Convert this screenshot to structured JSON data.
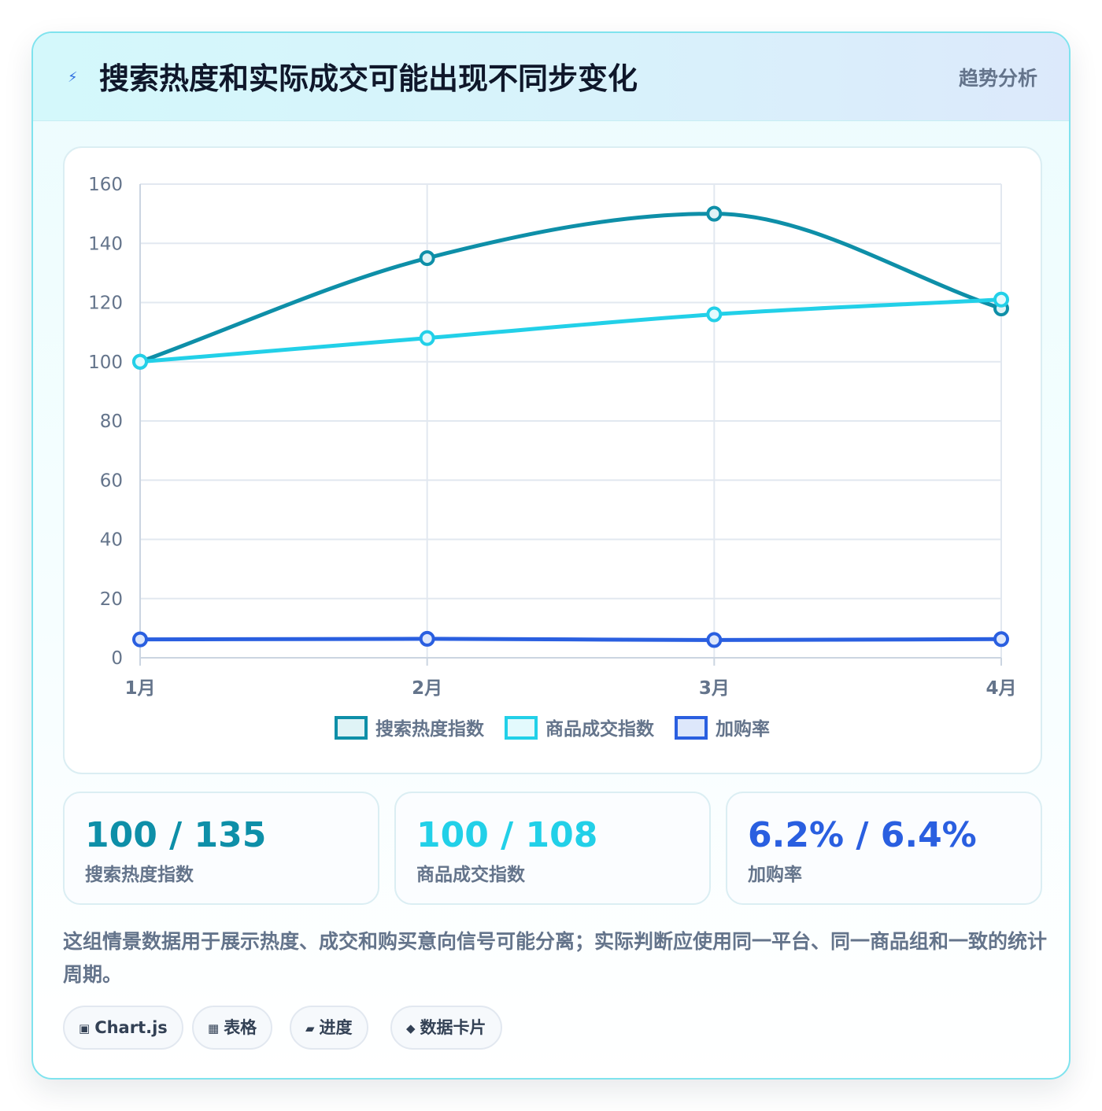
{
  "header": {
    "title": "搜索热度和实际成交可能出现不同步变化",
    "tag": "趋势分析",
    "icon": "lightning-icon"
  },
  "chart_data": {
    "type": "line",
    "categories": [
      "1月",
      "2月",
      "3月",
      "4月"
    ],
    "series": [
      {
        "name": "搜索热度指数",
        "values": [
          100,
          135,
          150,
          118
        ],
        "color": "#0e8fa8",
        "fill": "#dff3f6"
      },
      {
        "name": "商品成交指数",
        "values": [
          100,
          108,
          116,
          121
        ],
        "color": "#22d0e8",
        "fill": "#e3fafd"
      },
      {
        "name": "加购率",
        "values": [
          6.2,
          6.4,
          6.0,
          6.3
        ],
        "color": "#2a5fe0",
        "fill": "#dde7fb"
      }
    ],
    "ylim": [
      0,
      160
    ],
    "yticks": [
      0,
      20,
      40,
      60,
      80,
      100,
      120,
      140,
      160
    ],
    "grid": true,
    "legend": "bottom"
  },
  "stats": [
    {
      "value": "100 / 135",
      "label": "搜索热度指数",
      "color": "#0e8fa8"
    },
    {
      "value": "100 / 108",
      "label": "商品成交指数",
      "color": "#22d0e8"
    },
    {
      "value": "6.2% / 6.4%",
      "label": "加购率",
      "color": "#2a5fe0"
    }
  ],
  "note": "这组情景数据用于展示热度、成交和购买意向信号可能分离；实际判断应使用同一平台、同一商品组和一致的统计周期。",
  "chips": [
    {
      "icon": "▣",
      "icon_name": "chart-icon",
      "label": "Chart.js"
    },
    {
      "icon": "▦",
      "icon_name": "table-icon",
      "label": "表格"
    },
    {
      "icon": "▰",
      "icon_name": "progress-icon",
      "label": "进度"
    },
    {
      "icon": "◆",
      "icon_name": "card-icon",
      "label": "数据卡片"
    }
  ]
}
